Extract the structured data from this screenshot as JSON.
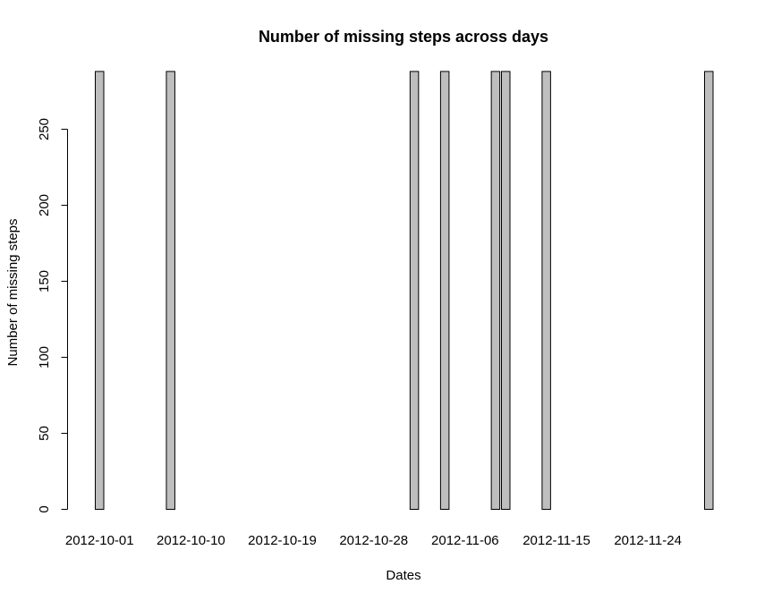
{
  "chart_data": {
    "type": "bar",
    "title": "Number of missing steps across days",
    "xlabel": "Dates",
    "ylabel": "Number of missing steps",
    "ylim": [
      0,
      288
    ],
    "y_ticks": [
      0,
      50,
      100,
      150,
      200,
      250
    ],
    "x_tick_labels": [
      "2012-10-01",
      "2012-10-10",
      "2012-10-19",
      "2012-10-28",
      "2012-11-06",
      "2012-11-15",
      "2012-11-24"
    ],
    "categories": [
      "2012-10-01",
      "2012-10-02",
      "2012-10-03",
      "2012-10-04",
      "2012-10-05",
      "2012-10-06",
      "2012-10-07",
      "2012-10-08",
      "2012-10-09",
      "2012-10-10",
      "2012-10-11",
      "2012-10-12",
      "2012-10-13",
      "2012-10-14",
      "2012-10-15",
      "2012-10-16",
      "2012-10-17",
      "2012-10-18",
      "2012-10-19",
      "2012-10-20",
      "2012-10-21",
      "2012-10-22",
      "2012-10-23",
      "2012-10-24",
      "2012-10-25",
      "2012-10-26",
      "2012-10-27",
      "2012-10-28",
      "2012-10-29",
      "2012-10-30",
      "2012-10-31",
      "2012-11-01",
      "2012-11-02",
      "2012-11-03",
      "2012-11-04",
      "2012-11-05",
      "2012-11-06",
      "2012-11-07",
      "2012-11-08",
      "2012-11-09",
      "2012-11-10",
      "2012-11-11",
      "2012-11-12",
      "2012-11-13",
      "2012-11-14",
      "2012-11-15",
      "2012-11-16",
      "2012-11-17",
      "2012-11-18",
      "2012-11-19",
      "2012-11-20",
      "2012-11-21",
      "2012-11-22",
      "2012-11-23",
      "2012-11-24",
      "2012-11-25",
      "2012-11-26",
      "2012-11-27",
      "2012-11-28",
      "2012-11-29",
      "2012-11-30"
    ],
    "values": [
      288,
      0,
      0,
      0,
      0,
      0,
      0,
      288,
      0,
      0,
      0,
      0,
      0,
      0,
      0,
      0,
      0,
      0,
      0,
      0,
      0,
      0,
      0,
      0,
      0,
      0,
      0,
      0,
      0,
      0,
      0,
      288,
      0,
      0,
      288,
      0,
      0,
      0,
      0,
      288,
      288,
      0,
      0,
      0,
      288,
      0,
      0,
      0,
      0,
      0,
      0,
      0,
      0,
      0,
      0,
      0,
      0,
      0,
      0,
      0,
      288
    ],
    "bar_color": "#bebebe",
    "grid": false
  }
}
